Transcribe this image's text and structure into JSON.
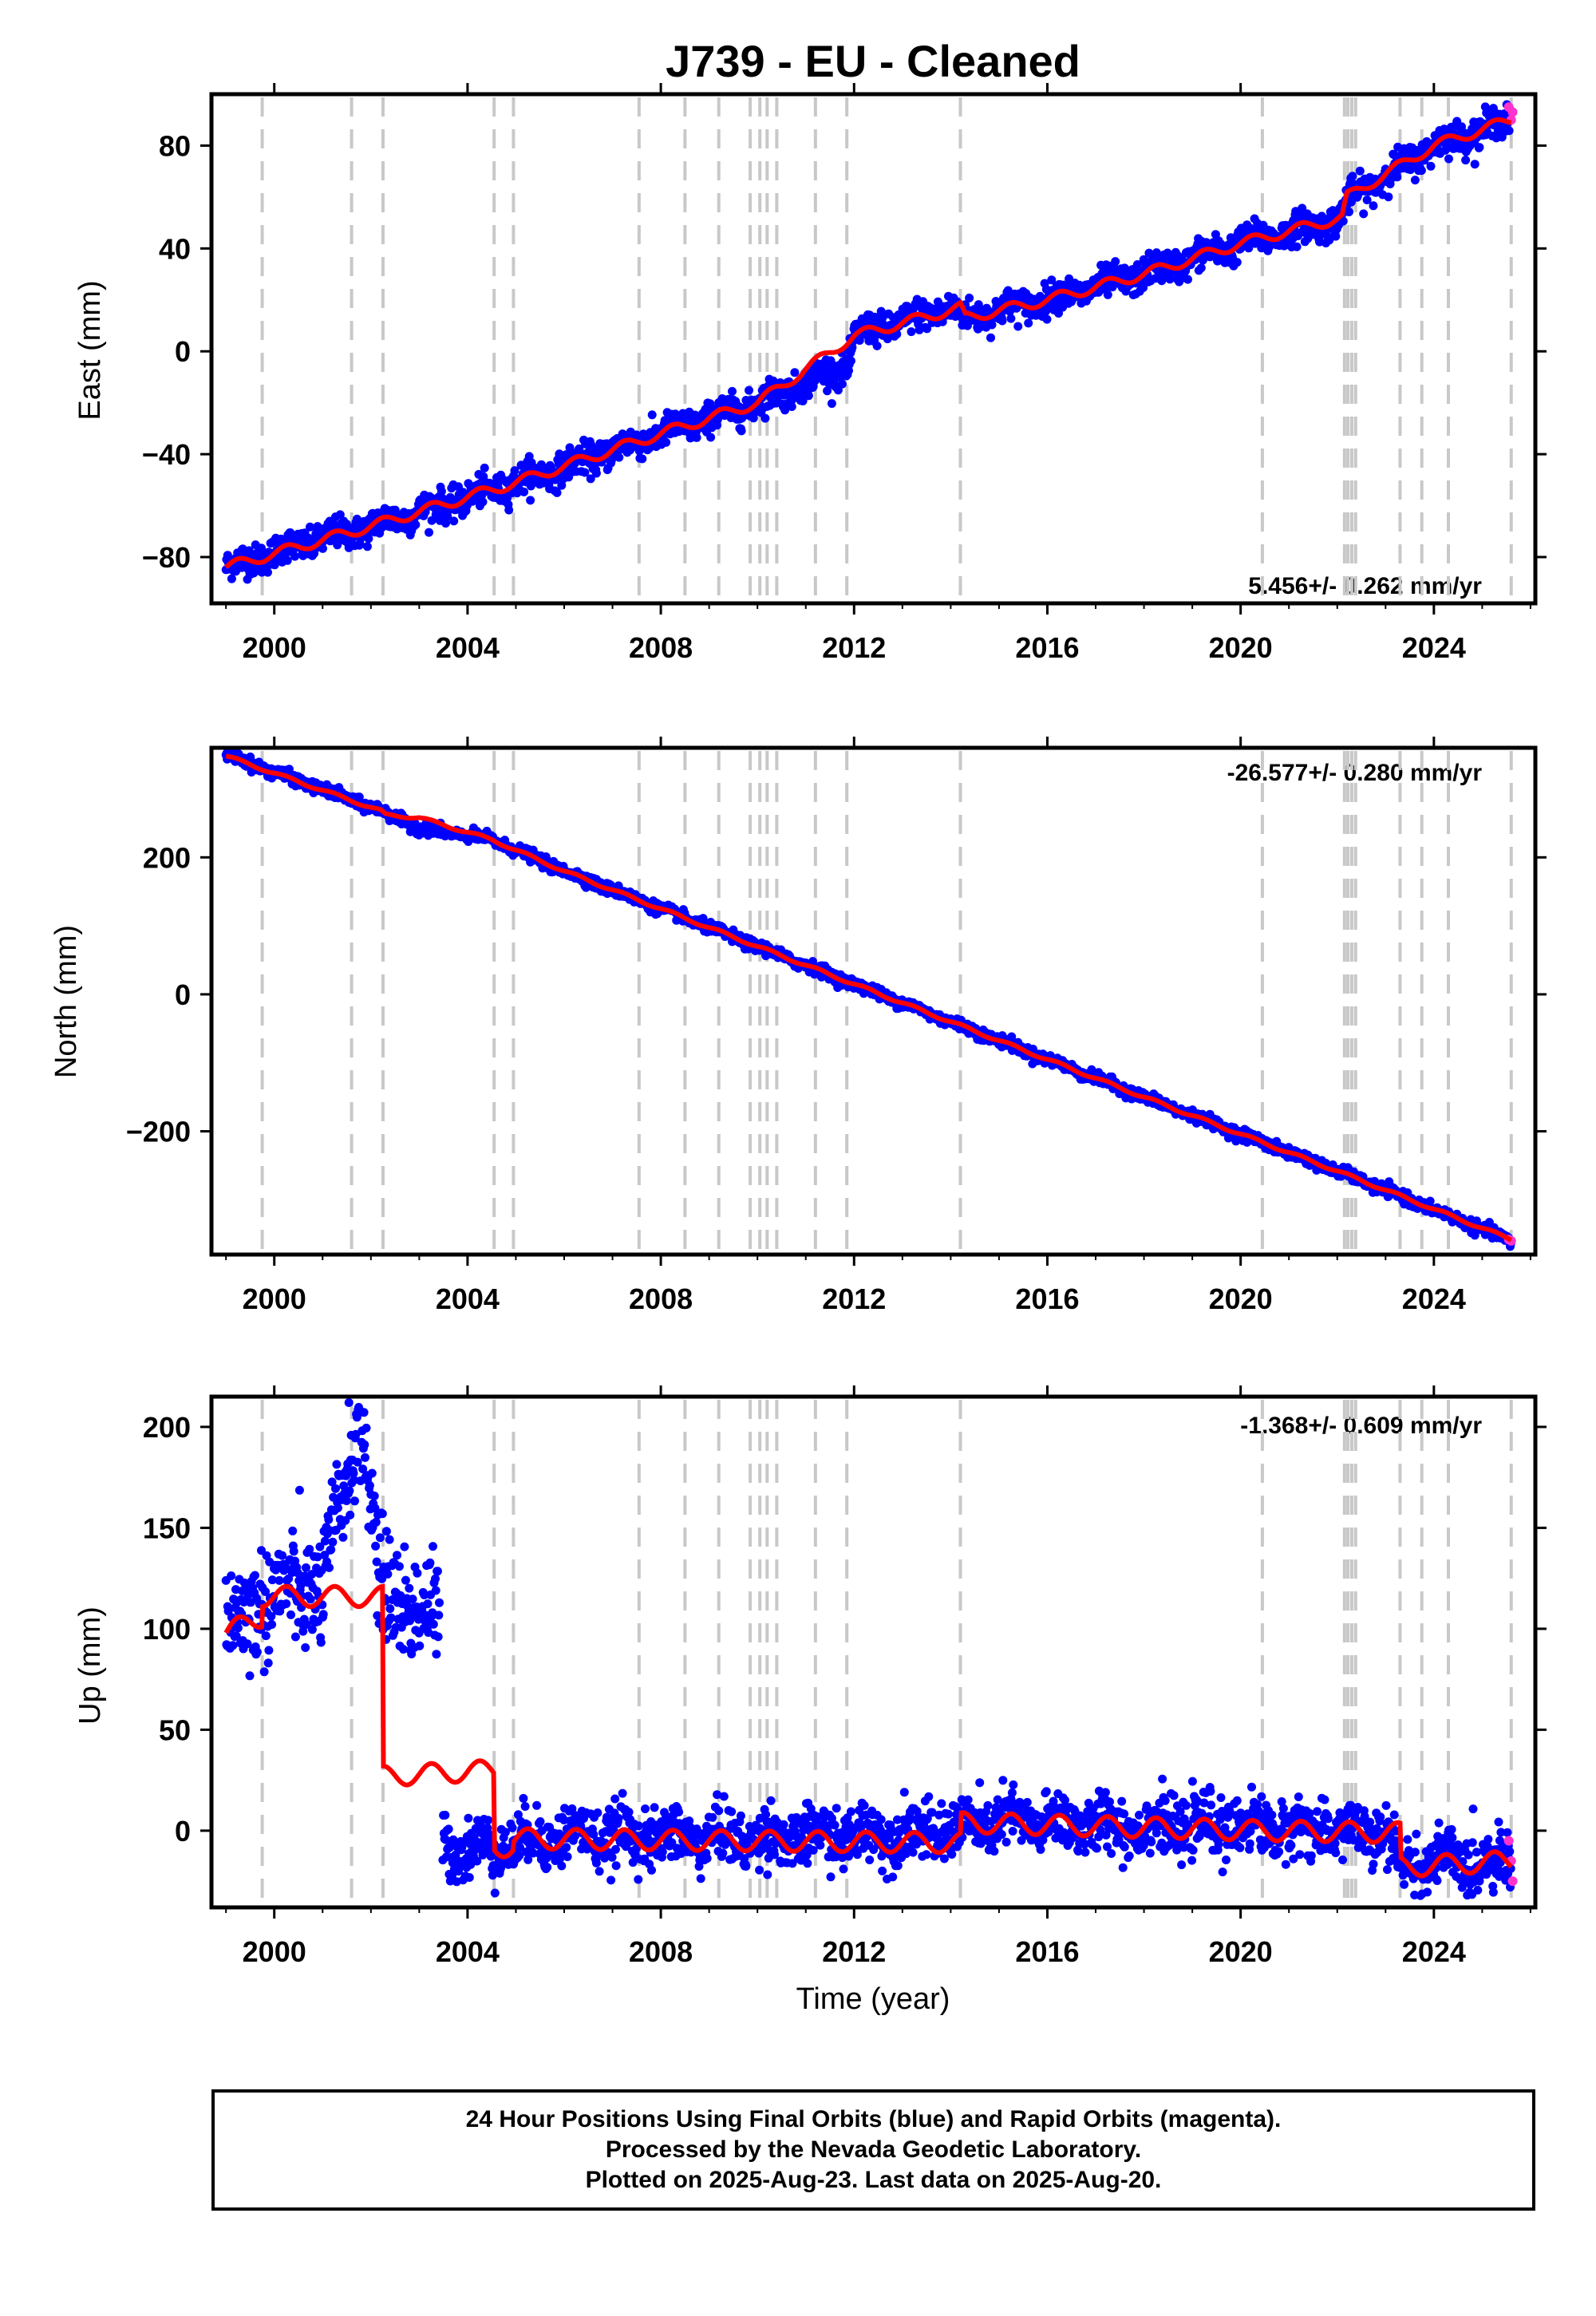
{
  "title": "J739  - EU - Cleaned",
  "colors": {
    "final_orbits": "#0000ff",
    "rapid_orbits": "#ff33cc",
    "model_fit": "#ff0000",
    "equipment_change": "#c8c8c8"
  },
  "footer": {
    "line1": "24 Hour Positions Using Final Orbits (blue) and Rapid Orbits (magenta).",
    "line2": "Processed by the Nevada Geodetic Laboratory.",
    "line3": "Plotted on 2025-Aug-23. Last data on 2025-Aug-20."
  },
  "chart_data": [
    {
      "type": "scatter",
      "ylabel": "East (mm)",
      "xlabel": "",
      "xlim": [
        1998.7,
        2026.1
      ],
      "ylim": [
        -98,
        100
      ],
      "x_ticks": [
        "2000",
        "2004",
        "2008",
        "2012",
        "2016",
        "2020",
        "2024"
      ],
      "x_tick_values": [
        2000,
        2004,
        2008,
        2012,
        2016,
        2020,
        2024
      ],
      "y_ticks": [
        "80",
        "40",
        "0",
        "−40",
        "−80"
      ],
      "y_tick_values": [
        80,
        40,
        0,
        -40,
        -80
      ],
      "rate_label": "5.456+/- 0.262 mm/yr",
      "rate_position": "bottom-right",
      "grid": false,
      "equipment_changes": [
        1999.75,
        2001.6,
        2002.25,
        2004.55,
        2004.95,
        2007.55,
        2008.5,
        2009.2,
        2009.85,
        2010.05,
        2010.2,
        2010.4,
        2011.2,
        2011.85,
        2014.2,
        2020.45,
        2022.15,
        2022.22,
        2022.3,
        2022.38,
        2023.3,
        2023.75,
        2024.3,
        2025.6
      ],
      "trend": [
        [
          1999.0,
          -84
        ],
        [
          2002.0,
          -68
        ],
        [
          2005.0,
          -51
        ],
        [
          2008.0,
          -32
        ],
        [
          2010.0,
          -20
        ],
        [
          2012.0,
          6
        ],
        [
          2014.2,
          17
        ],
        [
          2014.3,
          13
        ],
        [
          2016.0,
          20
        ],
        [
          2018.0,
          30
        ],
        [
          2020.0,
          42
        ],
        [
          2022.1,
          52
        ],
        [
          2022.2,
          60
        ],
        [
          2024.0,
          80
        ],
        [
          2025.6,
          90
        ]
      ],
      "series": [
        {
          "values": [
            [
              1999.0,
              -84
            ],
            [
              2000.0,
              -78
            ],
            [
              2002.0,
              -68
            ],
            [
              2004.0,
              -57
            ],
            [
              2006.0,
              -45
            ],
            [
              2008.0,
              -32
            ],
            [
              2010.0,
              -20
            ],
            [
              2011.9,
              -5
            ],
            [
              2012.0,
              6
            ],
            [
              2014.0,
              17
            ],
            [
              2014.3,
              13
            ],
            [
              2016.0,
              20
            ],
            [
              2018.0,
              30
            ],
            [
              2020.0,
              42
            ],
            [
              2022.0,
              51
            ],
            [
              2022.3,
              60
            ],
            [
              2024.0,
              80
            ],
            [
              2025.6,
              90
            ]
          ]
        }
      ],
      "rapid_values": [
        [
          2025.55,
          95
        ],
        [
          2025.6,
          90
        ],
        [
          2025.63,
          93
        ]
      ]
    },
    {
      "type": "scatter",
      "ylabel": "North (mm)",
      "xlabel": "",
      "xlim": [
        1998.7,
        2026.1
      ],
      "ylim": [
        -380,
        360
      ],
      "x_ticks": [
        "2000",
        "2004",
        "2008",
        "2012",
        "2016",
        "2020",
        "2024"
      ],
      "x_tick_values": [
        2000,
        2004,
        2008,
        2012,
        2016,
        2020,
        2024
      ],
      "y_ticks": [
        "200",
        "0",
        "−200"
      ],
      "y_tick_values": [
        200,
        0,
        -200
      ],
      "rate_label": "-26.577+/- 0.280 mm/yr",
      "rate_position": "top-right",
      "grid": false,
      "equipment_changes": [
        1999.75,
        2001.6,
        2002.25,
        2004.55,
        2004.95,
        2007.55,
        2008.5,
        2009.2,
        2009.85,
        2010.05,
        2010.2,
        2010.4,
        2011.2,
        2011.85,
        2014.2,
        2020.45,
        2022.15,
        2022.22,
        2022.3,
        2022.38,
        2023.3,
        2023.75,
        2024.3,
        2025.6
      ],
      "trend": [
        [
          1999.0,
          348
        ],
        [
          2002.2,
          268
        ],
        [
          2002.3,
          262
        ],
        [
          2003.0,
          258
        ],
        [
          2004.5,
          226
        ],
        [
          2006.0,
          180
        ],
        [
          2010.0,
          70
        ],
        [
          2014.0,
          -40
        ],
        [
          2018.0,
          -150
        ],
        [
          2022.0,
          -258
        ],
        [
          2025.6,
          -358
        ]
      ],
      "series": [
        {
          "values": [
            [
              1999.0,
              350
            ],
            [
              2002.2,
              268
            ],
            [
              2003.0,
              243
            ],
            [
              2004.5,
              226
            ],
            [
              2006.0,
              180
            ],
            [
              2010.0,
              70
            ],
            [
              2014.0,
              -40
            ],
            [
              2018.0,
              -150
            ],
            [
              2022.0,
              -258
            ],
            [
              2025.6,
              -360
            ]
          ]
        }
      ],
      "rapid_values": [
        [
          2025.55,
          -358
        ],
        [
          2025.6,
          -360
        ]
      ]
    },
    {
      "type": "scatter",
      "ylabel": "Up (mm)",
      "xlabel": "Time (year)",
      "xlim": [
        1998.7,
        2026.1
      ],
      "ylim": [
        -38,
        215
      ],
      "x_ticks": [
        "2000",
        "2004",
        "2008",
        "2012",
        "2016",
        "2020",
        "2024"
      ],
      "x_tick_values": [
        2000,
        2004,
        2008,
        2012,
        2016,
        2020,
        2024
      ],
      "y_ticks": [
        "200",
        "150",
        "100",
        "50",
        "0"
      ],
      "y_tick_values": [
        200,
        150,
        100,
        50,
        0
      ],
      "rate_label": "-1.368+/- 0.609 mm/yr",
      "rate_position": "top-right",
      "grid": false,
      "equipment_changes": [
        1999.75,
        2001.6,
        2002.25,
        2004.55,
        2004.95,
        2007.55,
        2008.5,
        2009.2,
        2009.85,
        2010.05,
        2010.2,
        2010.4,
        2011.2,
        2011.85,
        2014.2,
        2020.45,
        2022.15,
        2022.22,
        2022.3,
        2022.38,
        2023.3,
        2023.75,
        2024.3,
        2025.6
      ],
      "trend": [
        [
          1999.0,
          98
        ],
        [
          1999.75,
          106
        ],
        [
          1999.75,
          116
        ],
        [
          2002.25,
          116
        ],
        [
          2002.25,
          27
        ],
        [
          2004.55,
          30
        ],
        [
          2004.55,
          -8
        ],
        [
          2004.95,
          -8
        ],
        [
          2004.95,
          -4
        ],
        [
          2014.2,
          -6
        ],
        [
          2014.2,
          4
        ],
        [
          2020.45,
          0
        ],
        [
          2023.3,
          -1
        ],
        [
          2023.3,
          -18
        ],
        [
          2025.6,
          -15
        ]
      ],
      "series": [
        {
          "values": [
            [
              1999.0,
              100
            ],
            [
              2000.0,
              118
            ],
            [
              2001.0,
              120
            ],
            [
              2001.8,
              208
            ],
            [
              2002.2,
              120
            ],
            [
              2003.4,
              105
            ],
            [
              2003.5,
              -5
            ],
            [
              2004.0,
              -10
            ],
            [
              2006.0,
              -2
            ],
            [
              2010.0,
              -4
            ],
            [
              2014.0,
              0
            ],
            [
              2015.0,
              5
            ],
            [
              2018.0,
              2
            ],
            [
              2020.0,
              2
            ],
            [
              2022.0,
              0
            ],
            [
              2023.0,
              -2
            ],
            [
              2023.3,
              -18
            ],
            [
              2024.0,
              -15
            ],
            [
              2025.6,
              -16
            ]
          ]
        }
      ],
      "rapid_values": [
        [
          2025.55,
          -5
        ],
        [
          2025.6,
          -15
        ],
        [
          2025.63,
          -25
        ]
      ]
    }
  ]
}
